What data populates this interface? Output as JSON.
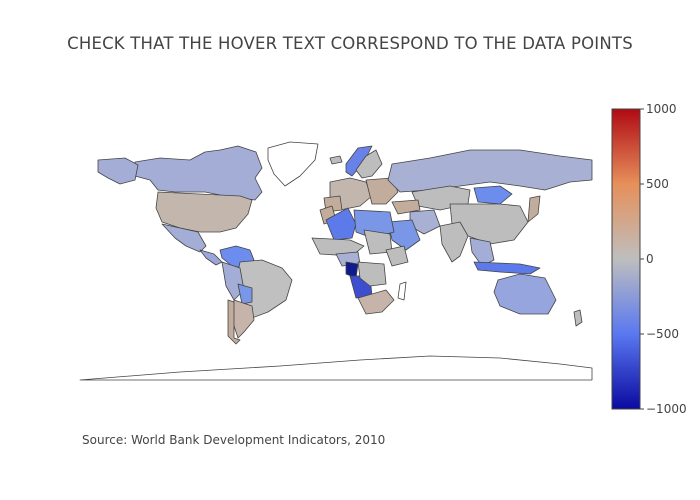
{
  "title": "CHECK THAT THE HOVER TEXT CORRESPOND TO THE DATA POINTS",
  "annotation": "Source: World Bank Development Indicators, 2010",
  "colorbar": {
    "ticks": [
      "1000",
      "500",
      "0",
      "−500",
      "−1000"
    ],
    "range": [
      -1000,
      1000
    ],
    "colorscale": [
      "#0a0aa0",
      "#5a78f0",
      "#bebebe",
      "#e6905a",
      "#b00a14"
    ]
  },
  "colors": {
    "land_default": "#bdbdbd",
    "border": "#444444",
    "ocean": "#ffffff"
  }
}
